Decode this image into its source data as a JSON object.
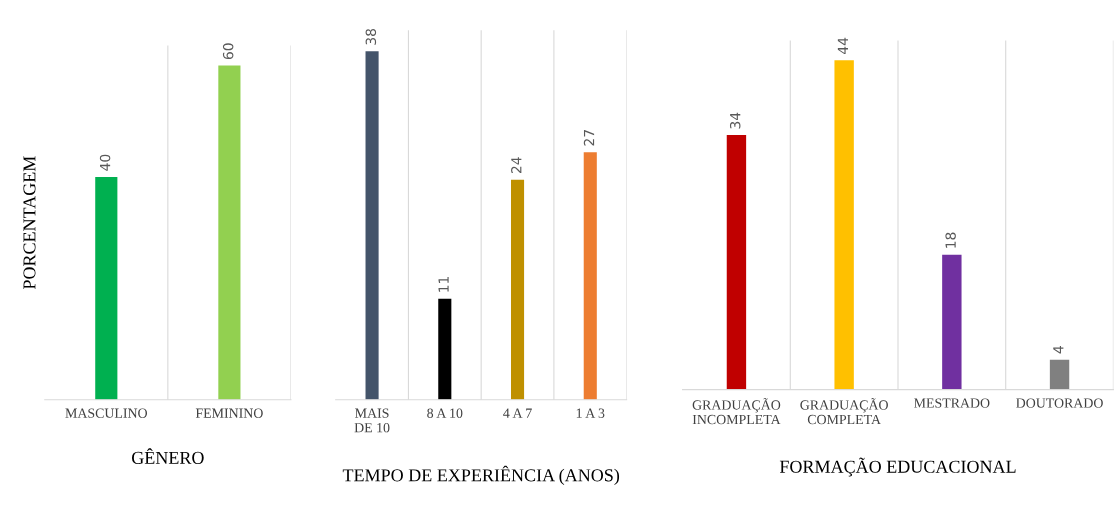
{
  "chart_data": [
    {
      "type": "bar",
      "ylabel": "PORCENTAGEM",
      "xlabel": "GÊNERO",
      "categories": [
        "MASCULINO",
        "FEMININO"
      ],
      "values": [
        40,
        60
      ],
      "colors": [
        "#00b050",
        "#92d050"
      ],
      "data_labels": true,
      "tick_labels": "x"
    },
    {
      "type": "bar",
      "xlabel": "TEMPO DE EXPERIÊNCIA (ANOS)",
      "categories": [
        "MAIS\nDE 10",
        "8 A 10",
        "4 A 7",
        "1 A 3"
      ],
      "values": [
        38,
        11,
        24,
        27
      ],
      "colors": [
        "#44546a",
        "#000000",
        "#bf9000",
        "#ed7d31"
      ],
      "data_labels": true,
      "tick_labels": "x"
    },
    {
      "type": "bar",
      "xlabel": "FORMAÇÃO EDUCACIONAL",
      "categories": [
        "GRADUAÇÃO\nINCOMPLETA",
        "GRADUAÇÃO\nCOMPLETA",
        "MESTRADO",
        "DOUTORADO"
      ],
      "values": [
        34,
        44,
        18,
        4
      ],
      "colors": [
        "#c00000",
        "#ffc000",
        "#7030a0",
        "#808080"
      ],
      "data_labels": true,
      "tick_labels": "x"
    }
  ]
}
